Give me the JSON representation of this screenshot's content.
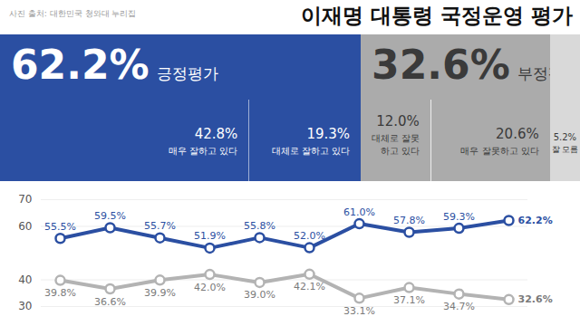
{
  "source": "사진 출처: 대한민국 청와대 누리집",
  "summary": {
    "positive": {
      "value": 62.2,
      "label": "62.2%",
      "name": "긍정평가",
      "color": "#2b4fa2",
      "parts": [
        {
          "value": 42.8,
          "label": "42.8%",
          "name": "매우 잘하고 있다"
        },
        {
          "value": 19.3,
          "label": "19.3%",
          "name": "대체로 잘하고 있다"
        }
      ]
    },
    "negative": {
      "value": 32.6,
      "label": "32.6%",
      "name": "부정평가",
      "color": "#ababab",
      "parts": [
        {
          "value": 12.0,
          "label": "12.0%",
          "name": "대체로 잘못하고 있다"
        },
        {
          "value": 20.6,
          "label": "20.6%",
          "name": "매우 잘못하고 있다"
        }
      ]
    },
    "unknown": {
      "value": 5.2,
      "label": "5.2%",
      "name": "잘 모름",
      "color": "#d9d9d9"
    }
  },
  "chart_data": {
    "type": "line",
    "title": "이재명 대통령 국정운영 평가",
    "categories": [
      null,
      null,
      null,
      null,
      null,
      null,
      null,
      null,
      null,
      null
    ],
    "series": [
      {
        "name": "긍정평가",
        "color": "#2b4fa2",
        "marker": "circle",
        "line_style": "solid",
        "values": [
          55.5,
          59.5,
          55.7,
          51.9,
          55.8,
          52.0,
          61.0,
          57.8,
          59.3,
          62.2
        ],
        "value_labels": [
          "55.5%",
          "59.5%",
          "55.7%",
          "51.9%",
          "55.8%",
          "52.0%",
          "61.0%",
          "57.8%",
          "59.3%",
          "62.2%"
        ]
      },
      {
        "name": "부정평가",
        "color": "#b3b3b3",
        "marker": "circle",
        "line_style": "solid",
        "values": [
          39.8,
          36.6,
          39.9,
          42.0,
          39.0,
          42.1,
          33.1,
          37.1,
          34.7,
          32.6
        ],
        "value_labels": [
          "39.8%",
          "36.6%",
          "39.9%",
          "42.0%",
          "39.0%",
          "42.1%",
          "33.1%",
          "37.1%",
          "34.7%",
          "32.6%"
        ]
      }
    ],
    "ylim": [
      30,
      70
    ],
    "yticks": [
      30,
      40,
      60,
      70
    ],
    "grid": true,
    "data_labels": true,
    "tick_labels": "y"
  }
}
